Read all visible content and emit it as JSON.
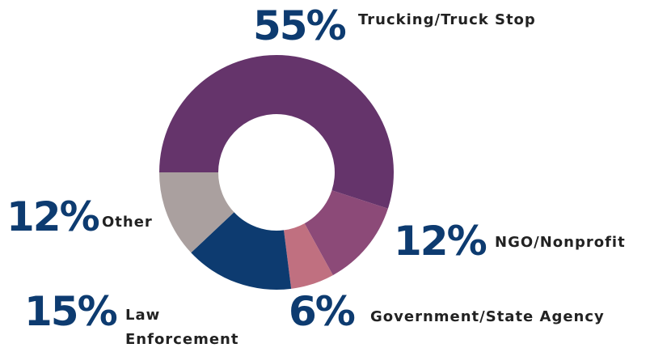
{
  "chart_data": {
    "type": "donut",
    "categories": [
      "Trucking/Truck Stop",
      "NGO/Nonprofit",
      "Government/State Agency",
      "Law Enforcement",
      "Other"
    ],
    "values": [
      55,
      12,
      6,
      15,
      12
    ],
    "value_labels": [
      "55%",
      "12%",
      "6%",
      "15%",
      "12%"
    ],
    "colors": [
      "#65346b",
      "#8c4a78",
      "#c07080",
      "#0d3b70",
      "#aaa09f"
    ]
  }
}
